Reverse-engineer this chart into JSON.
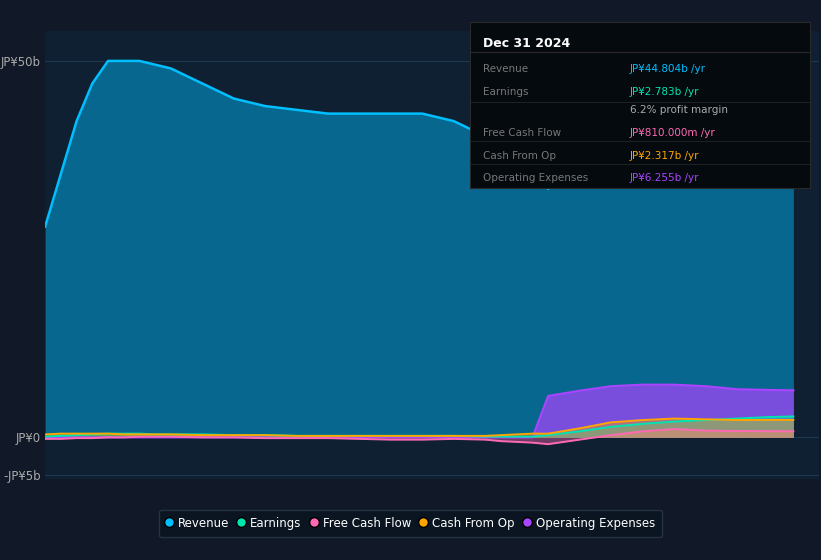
{
  "background_color": "#111827",
  "plot_bg_color": "#0f2033",
  "title": "Dec 31 2024",
  "info_box_rows": [
    {
      "label": "Revenue",
      "value": "JP¥44.804b /yr",
      "value_color": "#00bfff"
    },
    {
      "label": "Earnings",
      "value": "JP¥2.783b /yr",
      "value_color": "#00e5b0"
    },
    {
      "label": "",
      "value": "6.2% profit margin",
      "value_color": "#aaaaaa"
    },
    {
      "label": "Free Cash Flow",
      "value": "JP¥810.000m /yr",
      "value_color": "#ff69b4"
    },
    {
      "label": "Cash From Op",
      "value": "JP¥2.317b /yr",
      "value_color": "#ffa500"
    },
    {
      "label": "Operating Expenses",
      "value": "JP¥6.255b /yr",
      "value_color": "#aa44ff"
    }
  ],
  "years": [
    2013.0,
    2013.25,
    2013.5,
    2013.75,
    2014.0,
    2014.25,
    2014.5,
    2014.75,
    2015.0,
    2015.5,
    2016.0,
    2016.5,
    2017.0,
    2017.5,
    2018.0,
    2018.5,
    2019.0,
    2019.5,
    2020.0,
    2020.25,
    2020.5,
    2020.75,
    2021.0,
    2021.5,
    2022.0,
    2022.5,
    2023.0,
    2023.5,
    2024.0,
    2024.5,
    2024.9
  ],
  "revenue": [
    28,
    35,
    42,
    47,
    50,
    50,
    50,
    49.5,
    49,
    47,
    45,
    44,
    43.5,
    43,
    43,
    43,
    43,
    42,
    40,
    38.5,
    37,
    35.5,
    33,
    37,
    42,
    46,
    46,
    45,
    44.5,
    44.5,
    44.8
  ],
  "earnings": [
    0.1,
    0.2,
    0.3,
    0.4,
    0.5,
    0.5,
    0.5,
    0.4,
    0.4,
    0.4,
    0.3,
    0.3,
    0.2,
    0.2,
    0.2,
    0.2,
    0.2,
    0.2,
    0.1,
    0.1,
    0.1,
    0.1,
    0.3,
    0.8,
    1.4,
    1.8,
    2.1,
    2.3,
    2.5,
    2.7,
    2.783
  ],
  "free_cash_flow": [
    -0.2,
    -0.2,
    -0.1,
    -0.1,
    0.0,
    0.0,
    0.1,
    0.1,
    0.1,
    0.0,
    0.0,
    -0.1,
    -0.1,
    -0.1,
    -0.2,
    -0.3,
    -0.3,
    -0.2,
    -0.3,
    -0.5,
    -0.6,
    -0.7,
    -0.9,
    -0.3,
    0.3,
    0.8,
    1.1,
    0.9,
    0.85,
    0.82,
    0.81
  ],
  "cash_from_op": [
    0.4,
    0.5,
    0.5,
    0.5,
    0.5,
    0.4,
    0.4,
    0.4,
    0.4,
    0.3,
    0.3,
    0.3,
    0.2,
    0.2,
    0.2,
    0.2,
    0.2,
    0.2,
    0.2,
    0.3,
    0.4,
    0.5,
    0.5,
    1.2,
    2.0,
    2.3,
    2.5,
    2.4,
    2.3,
    2.32,
    2.317
  ],
  "operating_expenses": [
    0.0,
    0.0,
    0.0,
    0.0,
    0.0,
    0.0,
    0.0,
    0.0,
    0.0,
    0.0,
    0.0,
    0.0,
    0.0,
    0.0,
    0.0,
    0.0,
    0.0,
    0.0,
    0.0,
    0.0,
    0.0,
    0.0,
    5.5,
    6.2,
    6.8,
    7.0,
    7.0,
    6.8,
    6.4,
    6.3,
    6.255
  ],
  "colors": {
    "revenue": "#00bfff",
    "earnings": "#00e5b0",
    "free_cash_flow": "#ff69b4",
    "cash_from_op": "#ffa500",
    "operating_expenses": "#aa44ff"
  },
  "ylim": [
    -5.5,
    54
  ],
  "ytick_values": [
    -5,
    0,
    50
  ],
  "ytick_labels": [
    "-JP¥5b",
    "JP¥0",
    "JP¥50b"
  ],
  "xlim": [
    2013.0,
    2025.3
  ],
  "xticks": [
    2015,
    2016,
    2017,
    2018,
    2019,
    2020,
    2021,
    2022,
    2023,
    2024
  ],
  "legend_items": [
    {
      "label": "Revenue",
      "color": "#00bfff"
    },
    {
      "label": "Earnings",
      "color": "#00e5b0"
    },
    {
      "label": "Free Cash Flow",
      "color": "#ff69b4"
    },
    {
      "label": "Cash From Op",
      "color": "#ffa500"
    },
    {
      "label": "Operating Expenses",
      "color": "#aa44ff"
    }
  ]
}
